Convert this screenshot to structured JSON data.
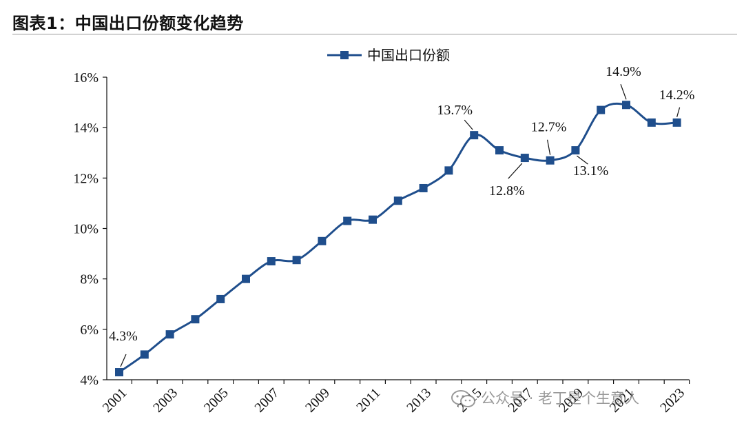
{
  "figure": {
    "title": "图表1：中国出口份额变化趋势"
  },
  "watermark": {
    "text": "公众号 · 老丁是个生意人",
    "icon": "wechat-icon"
  },
  "chart_data": {
    "type": "line",
    "title": "",
    "xlabel": "",
    "ylabel": "",
    "x": [
      2001,
      2002,
      2003,
      2004,
      2005,
      2006,
      2007,
      2008,
      2009,
      2010,
      2011,
      2012,
      2013,
      2014,
      2015,
      2016,
      2017,
      2018,
      2019,
      2020,
      2021,
      2022,
      2023
    ],
    "x_tick_labels": [
      "2001",
      "2003",
      "2005",
      "2007",
      "2009",
      "2011",
      "2013",
      "2015",
      "2017",
      "2019",
      "2021",
      "2023"
    ],
    "ylim": [
      4,
      16
    ],
    "y_ticks": [
      4,
      6,
      8,
      10,
      12,
      14,
      16
    ],
    "y_tick_labels": [
      "4%",
      "6%",
      "8%",
      "10%",
      "12%",
      "14%",
      "16%"
    ],
    "grid": false,
    "legend_position": "top-center",
    "series": [
      {
        "name": "中国出口份额",
        "color": "#1f4e8c",
        "marker": "square",
        "values": [
          4.3,
          5.0,
          5.8,
          6.4,
          7.2,
          8.0,
          8.7,
          8.75,
          9.5,
          10.3,
          10.35,
          11.1,
          11.6,
          12.3,
          13.7,
          13.1,
          12.8,
          12.7,
          13.1,
          14.7,
          14.9,
          14.2,
          14.2
        ]
      }
    ],
    "annotations": [
      {
        "x": 2001,
        "value": 4.3,
        "text": "4.3%"
      },
      {
        "x": 2015,
        "value": 13.7,
        "text": "13.7%"
      },
      {
        "x": 2017,
        "value": 12.8,
        "text": "12.8%"
      },
      {
        "x": 2018,
        "value": 12.7,
        "text": "12.7%"
      },
      {
        "x": 2019,
        "value": 13.1,
        "text": "13.1%"
      },
      {
        "x": 2021,
        "value": 14.9,
        "text": "14.9%"
      },
      {
        "x": 2023,
        "value": 14.2,
        "text": "14.2%"
      }
    ]
  }
}
